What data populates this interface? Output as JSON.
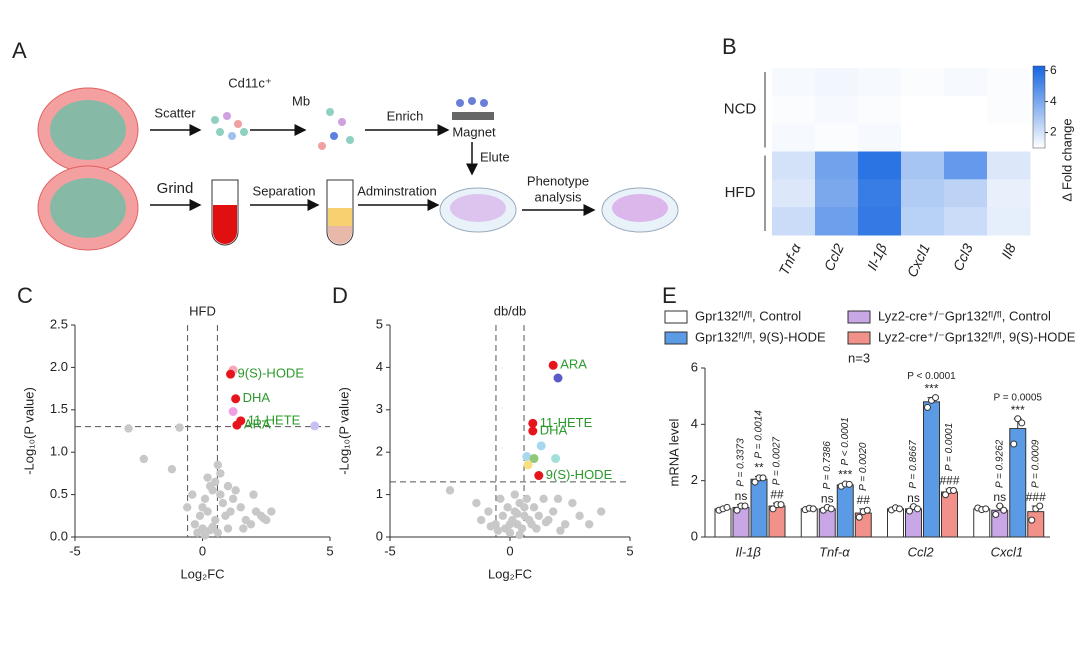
{
  "diagram": {
    "panel_label": "A",
    "scatter": "Scatter",
    "cd11c": "Cd11c⁺",
    "mb": "Mb",
    "enrich": "Enrich",
    "magnet": "Magnet",
    "elute": "Elute",
    "grind": "Grind",
    "separation": "Separation",
    "administration": "Adminstration",
    "phenotype": [
      "Phenotype",
      "analysis"
    ]
  },
  "chart_data": [
    {
      "type": "heatmap",
      "panel_label": "B",
      "columns": [
        "Tnf-α",
        "Ccl2",
        "Il-1β",
        "Cxcl1",
        "Ccl3",
        "Il8"
      ],
      "row_groups": [
        {
          "name": "NCD",
          "values": [
            [
              1.2,
              1.3,
              1.2,
              1.1,
              1.2,
              1.1
            ],
            [
              1.1,
              1.2,
              1.1,
              1.0,
              1.0,
              1.1
            ],
            [
              1.2,
              1.1,
              1.2,
              1.0,
              1.0,
              1.0
            ]
          ]
        },
        {
          "name": "HFD",
          "values": [
            [
              2.0,
              4.2,
              5.8,
              3.0,
              4.5,
              1.8
            ],
            [
              1.8,
              4.0,
              5.5,
              2.8,
              2.5,
              1.5
            ],
            [
              2.2,
              4.3,
              5.6,
              2.6,
              2.2,
              1.6
            ]
          ]
        }
      ],
      "colors": [
        "#ffffff",
        "#1565e0"
      ],
      "colorbar": {
        "label": "Δ Fold change",
        "lim": [
          1,
          6.3
        ],
        "ticks": [
          2,
          4,
          6
        ]
      }
    },
    {
      "type": "scatter",
      "panel_label": "C",
      "title": "HFD",
      "xlabel": "Log₂FC",
      "ylabel": "-Log₁₀(P value)",
      "xlim": [
        -5,
        5
      ],
      "ylim": [
        0,
        2.5
      ],
      "xticks": [
        -5,
        0,
        5
      ],
      "yticks": [
        {
          "value": 0,
          "label": "0.0"
        },
        {
          "value": 0.5,
          "label": "0.5"
        },
        {
          "value": 1,
          "label": "1.0"
        },
        {
          "value": 1.5,
          "label": "1.5"
        },
        {
          "value": 2,
          "label": "2.0"
        },
        {
          "value": 2.5,
          "label": "2.5"
        }
      ],
      "thresholds": {
        "x": [
          -0.585,
          0.585
        ],
        "y": 1.301
      },
      "points": {
        "color": "#c8c8c8",
        "x": [
          -2.9,
          -2.3,
          -0.9,
          -0.6,
          -0.3,
          -0.2,
          0,
          0.1,
          0.2,
          0.3,
          0.4,
          0.5,
          0.6,
          0.7,
          0.8,
          0.9,
          1.0,
          1.1,
          1.3,
          1.5,
          1.7,
          1.9,
          2.1,
          2.3,
          2.5,
          2.7,
          -0.4,
          0.1,
          0.3,
          0.5,
          0.7,
          0.2,
          0.0,
          -0.1,
          0.4,
          0.6,
          1.2,
          1.6,
          2.0,
          2.4,
          1.0,
          -1.2
        ],
        "y": [
          1.28,
          0.92,
          1.29,
          0.35,
          0.15,
          0.05,
          0.1,
          0.45,
          0.3,
          0.6,
          0.55,
          0.2,
          0.85,
          0.75,
          0.4,
          0.25,
          0.1,
          0.3,
          0.55,
          0.35,
          0.2,
          0.15,
          0.3,
          0.25,
          0.2,
          0.3,
          0.5,
          0.02,
          0.08,
          0.65,
          0.5,
          0.7,
          0.35,
          0.25,
          0.12,
          0.05,
          0.45,
          0.1,
          0.5,
          0.22,
          0.6,
          0.8
        ]
      },
      "highlights": [
        {
          "x": 1.2,
          "y": 1.97,
          "color": "#f7a8b8"
        },
        {
          "x": 1.1,
          "y": 1.92,
          "color": "#e8141c",
          "label": "9(S)-HODE"
        },
        {
          "x": 1.3,
          "y": 1.63,
          "color": "#e8141c",
          "label": "DHA"
        },
        {
          "x": 1.2,
          "y": 1.48,
          "color": "#f0a0e0"
        },
        {
          "x": 1.5,
          "y": 1.37,
          "color": "#e8141c",
          "label": "11-HETE"
        },
        {
          "x": 1.35,
          "y": 1.32,
          "color": "#e8141c",
          "label": "ARA"
        },
        {
          "x": 4.4,
          "y": 1.31,
          "color": "#c8c0f0"
        }
      ]
    },
    {
      "type": "scatter",
      "panel_label": "D",
      "title": "db/db",
      "xlabel": "Log₂FC",
      "ylabel": "-Log₁₀(P value)",
      "xlim": [
        -5,
        5
      ],
      "ylim": [
        0,
        5
      ],
      "xticks": [
        -5,
        0,
        5
      ],
      "yticks": [
        0,
        1,
        2,
        3,
        4,
        5
      ],
      "thresholds": {
        "x": [
          -0.585,
          0.585
        ],
        "y": 1.301
      },
      "points": {
        "color": "#c8c8c8",
        "x": [
          -2.5,
          -1.4,
          -1.2,
          -0.9,
          -0.6,
          -0.4,
          -0.3,
          -0.2,
          -0.1,
          0,
          0.1,
          0.2,
          0.3,
          0.4,
          0.5,
          0.6,
          0.7,
          0.8,
          0.9,
          1.0,
          1.2,
          1.4,
          1.6,
          1.8,
          2.0,
          2.3,
          2.6,
          2.9,
          3.3,
          3.8,
          -0.5,
          0.0,
          0.2,
          0.4,
          0.6,
          1.1,
          1.5,
          2.1,
          -0.8,
          0.3
        ],
        "y": [
          1.1,
          0.8,
          0.4,
          0.6,
          0.3,
          0.9,
          0.5,
          0.2,
          0.7,
          0.1,
          0.4,
          0.6,
          0.3,
          0.8,
          0.2,
          0.5,
          0.9,
          0.4,
          0.3,
          0.7,
          0.5,
          0.9,
          0.4,
          0.6,
          0.9,
          0.3,
          0.8,
          0.5,
          0.3,
          0.6,
          0.15,
          0.3,
          1.0,
          0.05,
          0.7,
          0.2,
          0.35,
          0.15,
          0.25,
          0.55
        ]
      },
      "highlights": [
        {
          "x": 1.8,
          "y": 4.05,
          "color": "#e8141c",
          "label": "ARA"
        },
        {
          "x": 2.0,
          "y": 3.75,
          "color": "#5a5ac8"
        },
        {
          "x": 0.95,
          "y": 2.68,
          "color": "#e8141c",
          "label": "11-HETE"
        },
        {
          "x": 0.95,
          "y": 2.5,
          "color": "#e8141c",
          "label": "DHA"
        },
        {
          "x": 1.3,
          "y": 2.15,
          "color": "#a8d8f0"
        },
        {
          "x": 0.7,
          "y": 1.9,
          "color": "#a8d8f0"
        },
        {
          "x": 1.0,
          "y": 1.85,
          "color": "#90c878"
        },
        {
          "x": 0.75,
          "y": 1.7,
          "color": "#f8e080"
        },
        {
          "x": 1.9,
          "y": 1.85,
          "color": "#a0e0d8"
        },
        {
          "x": 1.2,
          "y": 1.45,
          "color": "#e8141c",
          "label": "9(S)-HODE"
        }
      ]
    },
    {
      "type": "bar",
      "panel_label": "E",
      "ylabel": "mRNA level",
      "note": "n=3",
      "categories": [
        "Il-1β",
        "Tnf-α",
        "Ccl2",
        "Cxcl1"
      ],
      "ylim": [
        0,
        6
      ],
      "yticks": [
        0,
        2,
        4,
        6
      ],
      "series": [
        {
          "name": "Gpr132ᶠˡ/ᶠˡ, Control",
          "color": "#ffffff",
          "values": [
            1,
            1,
            1,
            1
          ],
          "err": [
            0.05,
            0.04,
            0.05,
            0.04
          ],
          "points": [
            [
              0.95,
              1.0,
              1.05
            ],
            [
              0.97,
              1.02,
              1.0
            ],
            [
              0.96,
              1.04,
              1.0
            ],
            [
              1.03,
              0.97,
              1.0
            ]
          ]
        },
        {
          "name": "Lyz2-cre⁺/⁻Gpr132ᶠˡ/ᶠˡ, Control",
          "color": "#c9a6e6",
          "values": [
            1.05,
            1.0,
            1.0,
            0.95
          ],
          "err": [
            0.1,
            0.05,
            0.08,
            0.15
          ],
          "points": [
            [
              0.95,
              1.1,
              1.1
            ],
            [
              0.95,
              1.05,
              1.0
            ],
            [
              0.92,
              1.08,
              1.0
            ],
            [
              0.8,
              1.1,
              0.95
            ]
          ]
        },
        {
          "name": "Gpr132ᶠˡ/ᶠˡ, 9(S)-HODE",
          "color": "#5b9be6",
          "values": [
            2.05,
            1.85,
            4.8,
            3.85
          ],
          "err": [
            0.1,
            0.05,
            0.15,
            0.35
          ],
          "points": [
            [
              1.95,
              2.1,
              2.1
            ],
            [
              1.8,
              1.88,
              1.87
            ],
            [
              4.6,
              4.85,
              4.95
            ],
            [
              3.3,
              4.2,
              4.05
            ]
          ]
        },
        {
          "name": "Lyz2-cre⁺/⁻Gpr132ᶠˡ/ᶠˡ, 9(S)-HODE",
          "color": "#f2908a",
          "values": [
            1.1,
            0.85,
            1.6,
            0.9
          ],
          "err": [
            0.1,
            0.15,
            0.1,
            0.2
          ],
          "points": [
            [
              1.0,
              1.15,
              1.15
            ],
            [
              0.7,
              0.9,
              0.95
            ],
            [
              1.5,
              1.65,
              1.65
            ],
            [
              0.6,
              1.0,
              1.1
            ]
          ]
        }
      ],
      "stats": [
        [
          {
            "series": 1,
            "p": "P = 0.3373",
            "sig": "ns",
            "rotated": true
          },
          {
            "series": 2,
            "p": "P = 0.0014",
            "sig": "**",
            "rotated": true
          },
          {
            "series": 3,
            "p": "P = 0.0027",
            "sig": "##",
            "rotated": true
          }
        ],
        [
          {
            "series": 1,
            "p": "P = 0.7386",
            "sig": "ns",
            "rotated": true
          },
          {
            "series": 2,
            "p": "P < 0.0001",
            "sig": "***",
            "rotated": true
          },
          {
            "series": 3,
            "p": "P = 0.0020",
            "sig": "##",
            "rotated": true
          }
        ],
        [
          {
            "series": 1,
            "p": "P = 0.8667",
            "sig": "ns",
            "rotated": true
          },
          {
            "series": 2,
            "p": "P < 0.0001",
            "sig": "***",
            "rotated": false
          },
          {
            "series": 3,
            "p": "P = 0.0001",
            "sig": "###",
            "rotated": true
          }
        ],
        [
          {
            "series": 1,
            "p": "P = 0.9262",
            "sig": "ns",
            "rotated": true
          },
          {
            "series": 2,
            "p": "P = 0.0005",
            "sig": "***",
            "rotated": false
          },
          {
            "series": 3,
            "p": "P = 0.0009",
            "sig": "###",
            "rotated": true
          }
        ]
      ]
    }
  ]
}
